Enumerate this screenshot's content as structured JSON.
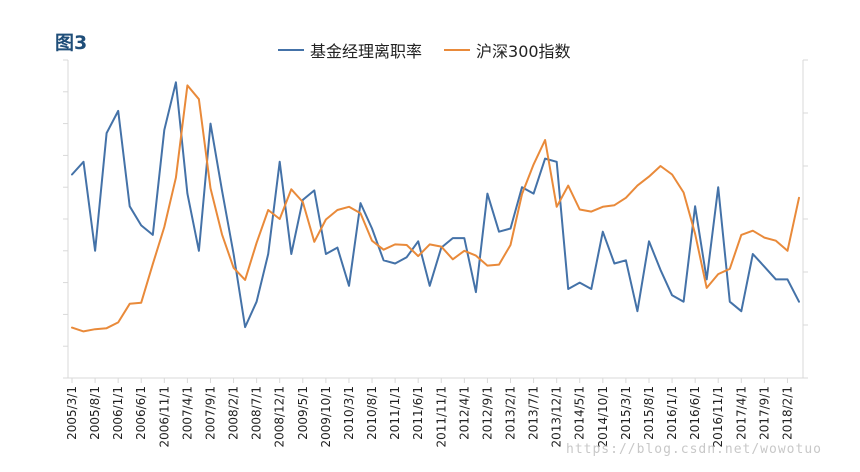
{
  "figure_label": "图3",
  "watermark": "https://blog.csdn.net/wowotuo",
  "colors": {
    "turnover": "#4472a8",
    "csi300": "#e98a3a",
    "axis": "#d9d9d9"
  },
  "chart_data": {
    "type": "line",
    "xlabel": "",
    "ylabel": "",
    "grid": false,
    "legend_position": "top-center",
    "x_tick_labels": [
      "2005/3/1",
      "2005/8/1",
      "2006/1/1",
      "2006/6/1",
      "2006/11/1",
      "2007/4/1",
      "2007/9/1",
      "2008/2/1",
      "2008/7/1",
      "2008/12/1",
      "2009/5/1",
      "2009/10/1",
      "2010/3/1",
      "2010/8/1",
      "2011/1/1",
      "2011/6/1",
      "2011/11/1",
      "2012/4/1",
      "2012/9/1",
      "2013/2/1",
      "2013/7/1",
      "2013/12/1",
      "2014/5/1",
      "2014/10/1",
      "2015/3/1",
      "2015/8/1",
      "2016/1/1",
      "2016/6/1",
      "2016/11/1",
      "2017/4/1",
      "2017/9/1",
      "2018/2/1"
    ],
    "x": [
      "2005/3/1",
      "2005/5/1",
      "2005/8/1",
      "2005/10/1",
      "2006/1/1",
      "2006/3/1",
      "2006/6/1",
      "2006/8/1",
      "2006/11/1",
      "2007/1/1",
      "2007/4/1",
      "2007/6/1",
      "2007/9/1",
      "2007/11/1",
      "2008/2/1",
      "2008/4/1",
      "2008/7/1",
      "2008/9/1",
      "2008/12/1",
      "2009/2/1",
      "2009/5/1",
      "2009/7/1",
      "2009/10/1",
      "2009/12/1",
      "2010/3/1",
      "2010/5/1",
      "2010/8/1",
      "2010/10/1",
      "2011/1/1",
      "2011/3/1",
      "2011/6/1",
      "2011/8/1",
      "2011/11/1",
      "2012/1/1",
      "2012/4/1",
      "2012/6/1",
      "2012/9/1",
      "2012/11/1",
      "2013/2/1",
      "2013/4/1",
      "2013/7/1",
      "2013/9/1",
      "2013/12/1",
      "2014/2/1",
      "2014/5/1",
      "2014/7/1",
      "2014/10/1",
      "2014/12/1",
      "2015/3/1",
      "2015/5/1",
      "2015/8/1",
      "2015/10/1",
      "2016/1/1",
      "2016/3/1",
      "2016/6/1",
      "2016/8/1",
      "2016/11/1",
      "2017/1/1",
      "2017/4/1",
      "2017/6/1",
      "2017/9/1",
      "2017/11/1",
      "2018/2/1",
      "2018/4/1"
    ],
    "ylim_left": [
      0,
      10
    ],
    "ylim_right": [
      0,
      6000
    ],
    "series": [
      {
        "name": "基金经理离职率",
        "axis": "left",
        "values": [
          6.4,
          6.8,
          4.0,
          7.7,
          8.4,
          5.4,
          4.8,
          4.5,
          7.8,
          9.3,
          5.8,
          4.0,
          8.0,
          5.9,
          3.9,
          1.6,
          2.4,
          3.9,
          6.8,
          3.9,
          5.6,
          5.9,
          3.9,
          4.1,
          2.9,
          5.5,
          4.7,
          3.7,
          3.6,
          3.8,
          4.3,
          2.9,
          4.1,
          4.4,
          4.4,
          2.7,
          5.8,
          4.6,
          4.7,
          6.0,
          5.8,
          6.9,
          6.8,
          2.8,
          3.0,
          2.8,
          4.6,
          3.6,
          3.7,
          2.1,
          4.3,
          3.4,
          2.6,
          2.4,
          5.4,
          3.1,
          6.0,
          2.4,
          2.1,
          3.9,
          3.5,
          3.1,
          3.1,
          2.4
        ]
      },
      {
        "name": "沪深300指数",
        "axis": "right",
        "values": [
          950,
          880,
          920,
          940,
          1050,
          1400,
          1420,
          2150,
          2850,
          3780,
          5520,
          5260,
          3580,
          2710,
          2080,
          1850,
          2550,
          3170,
          3000,
          3560,
          3320,
          2570,
          2990,
          3170,
          3230,
          3110,
          2590,
          2420,
          2520,
          2510,
          2300,
          2520,
          2480,
          2240,
          2400,
          2310,
          2120,
          2140,
          2510,
          3470,
          4030,
          4490,
          3230,
          3630,
          3180,
          3140,
          3230,
          3260,
          3400,
          3630,
          3800,
          4000,
          3840,
          3500,
          2720,
          1700,
          1960,
          2060,
          2700,
          2780,
          2650,
          2590,
          2400,
          3400
        ]
      }
    ]
  }
}
